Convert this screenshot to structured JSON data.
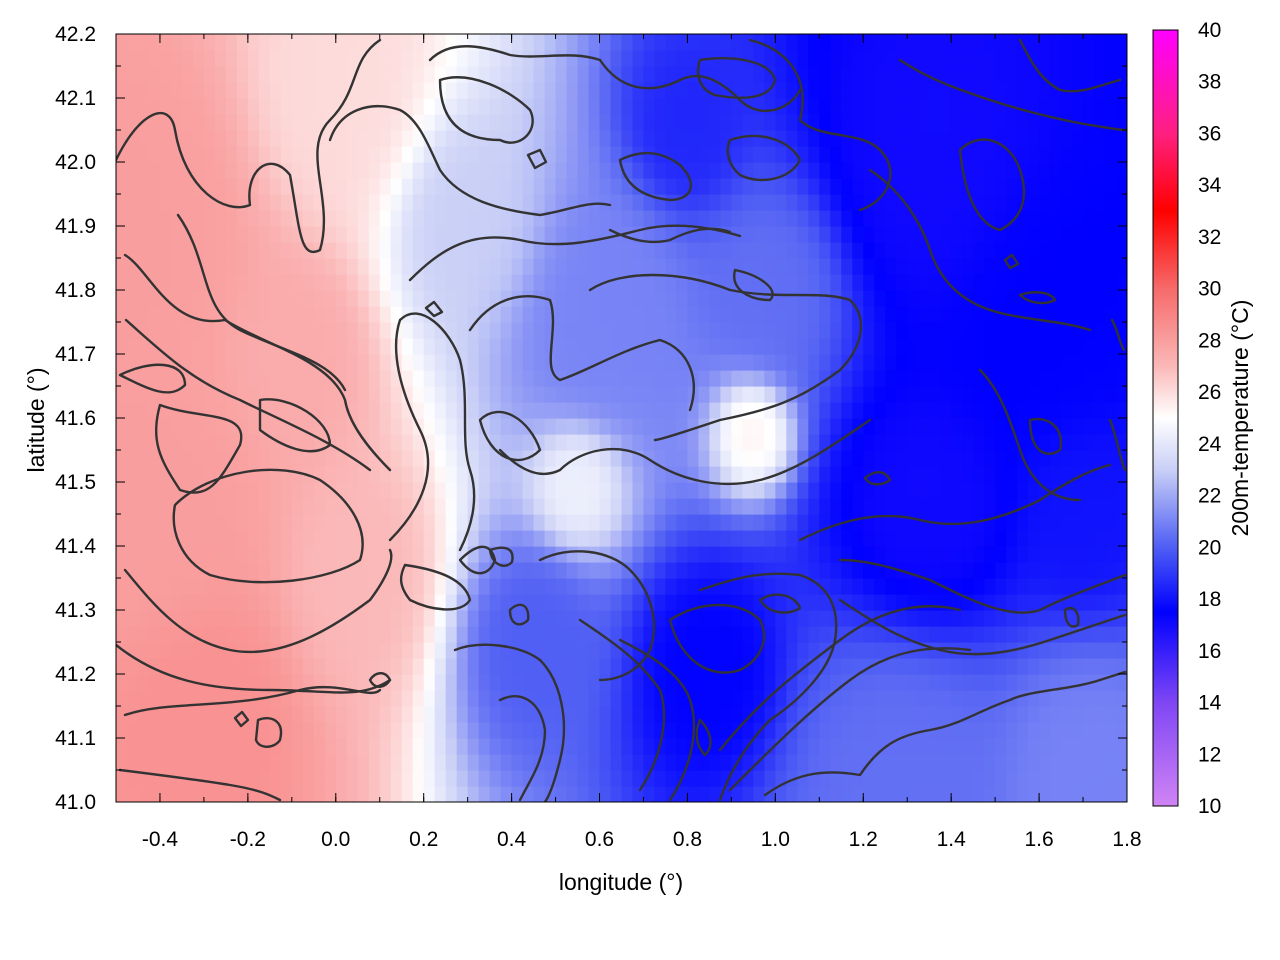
{
  "chart_data": {
    "type": "heatmap",
    "title": "",
    "xlabel": "longitude (°)",
    "ylabel": "latitude (°)",
    "colorbar_label": "200m-temperature (°C)",
    "xlim": [
      -0.5,
      1.8
    ],
    "ylim": [
      41.0,
      42.2
    ],
    "clim": [
      10,
      40
    ],
    "x_ticks": [
      "-0.4",
      "-0.2",
      "0.0",
      "0.2",
      "0.4",
      "0.6",
      "0.8",
      "1.0",
      "1.2",
      "1.4",
      "1.6",
      "1.8"
    ],
    "x_tick_values": [
      -0.4,
      -0.2,
      0.0,
      0.2,
      0.4,
      0.6,
      0.8,
      1.0,
      1.2,
      1.4,
      1.6,
      1.8
    ],
    "y_ticks": [
      "41.0",
      "41.1",
      "41.2",
      "41.3",
      "41.4",
      "41.5",
      "41.6",
      "41.7",
      "41.8",
      "41.9",
      "42.0",
      "42.1",
      "42.2"
    ],
    "y_tick_values": [
      41.0,
      41.1,
      41.2,
      41.3,
      41.4,
      41.5,
      41.6,
      41.7,
      41.8,
      41.9,
      42.0,
      42.1,
      42.2
    ],
    "colorbar_ticks": [
      "10",
      "12",
      "14",
      "16",
      "18",
      "20",
      "22",
      "24",
      "26",
      "28",
      "30",
      "32",
      "34",
      "36",
      "38",
      "40"
    ],
    "colorbar_tick_values": [
      10,
      12,
      14,
      16,
      18,
      20,
      22,
      24,
      26,
      28,
      30,
      32,
      34,
      36,
      38,
      40
    ],
    "palette": [
      {
        "value": 10,
        "color": "#d084f4"
      },
      {
        "value": 14,
        "color": "#7f46f4"
      },
      {
        "value": 17.5,
        "color": "#0000ff"
      },
      {
        "value": 20,
        "color": "#4f5ef4"
      },
      {
        "value": 23,
        "color": "#c9cff6"
      },
      {
        "value": 25,
        "color": "#ffffff"
      },
      {
        "value": 27,
        "color": "#fbb8b8"
      },
      {
        "value": 30,
        "color": "#f66a6a"
      },
      {
        "value": 33,
        "color": "#ff0000"
      },
      {
        "value": 36,
        "color": "#ff2080"
      },
      {
        "value": 40,
        "color": "#ff00ff"
      }
    ],
    "field_anchors": [
      {
        "lon": -0.45,
        "lat": 41.9,
        "temp": 28.0,
        "radius": 0.35
      },
      {
        "lon": -0.4,
        "lat": 41.45,
        "temp": 28.0,
        "radius": 0.3
      },
      {
        "lon": -0.3,
        "lat": 41.15,
        "temp": 28.5,
        "radius": 0.25
      },
      {
        "lon": -0.1,
        "lat": 41.7,
        "temp": 27.5,
        "radius": 0.2
      },
      {
        "lon": 0.05,
        "lat": 41.35,
        "temp": 27.0,
        "radius": 0.2
      },
      {
        "lon": 0.0,
        "lat": 42.1,
        "temp": 26.0,
        "radius": 0.25
      },
      {
        "lon": 0.3,
        "lat": 41.9,
        "temp": 23.0,
        "radius": 0.2
      },
      {
        "lon": 0.6,
        "lat": 41.75,
        "temp": 21.0,
        "radius": 0.25
      },
      {
        "lon": 0.55,
        "lat": 41.5,
        "temp": 24.5,
        "radius": 0.12
      },
      {
        "lon": 0.95,
        "lat": 41.58,
        "temp": 25.5,
        "radius": 0.1
      },
      {
        "lon": 0.45,
        "lat": 41.25,
        "temp": 20.0,
        "radius": 0.18
      },
      {
        "lon": 0.8,
        "lat": 42.05,
        "temp": 18.5,
        "radius": 0.15
      },
      {
        "lon": 1.0,
        "lat": 41.8,
        "temp": 20.5,
        "radius": 0.2
      },
      {
        "lon": 0.85,
        "lat": 41.2,
        "temp": 17.5,
        "radius": 0.18
      },
      {
        "lon": 1.35,
        "lat": 42.0,
        "temp": 17.0,
        "radius": 0.3
      },
      {
        "lon": 1.6,
        "lat": 41.75,
        "temp": 17.5,
        "radius": 0.3
      },
      {
        "lon": 1.35,
        "lat": 41.45,
        "temp": 17.0,
        "radius": 0.25
      },
      {
        "lon": 1.3,
        "lat": 41.05,
        "temp": 20.5,
        "radius": 0.3
      },
      {
        "lon": 1.7,
        "lat": 41.05,
        "temp": 21.0,
        "radius": 0.25
      },
      {
        "lon": 1.7,
        "lat": 41.45,
        "temp": 18.0,
        "radius": 0.2
      }
    ]
  }
}
